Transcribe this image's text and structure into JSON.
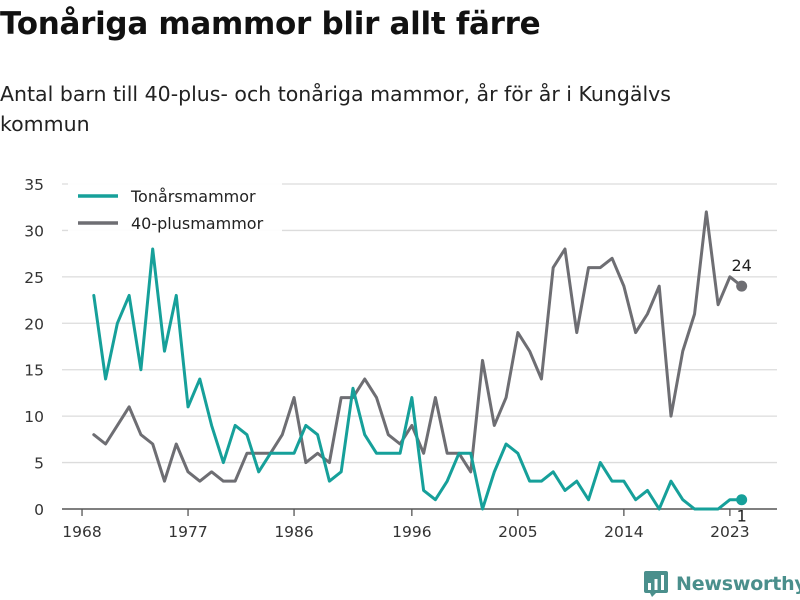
{
  "title": "Tonåriga mammor blir allt färre",
  "subtitle": "Antal barn till 40-plus- och tonåriga mammor, år för år i Kungälvs kommun",
  "brand": {
    "name": "Newsworthy",
    "icon": "newsworthy-logo-icon",
    "color": "#4a8f8c"
  },
  "chart_data": {
    "type": "line",
    "x": [
      1969,
      1970,
      1971,
      1972,
      1973,
      1974,
      1975,
      1976,
      1977,
      1978,
      1979,
      1980,
      1981,
      1982,
      1983,
      1984,
      1985,
      1986,
      1987,
      1988,
      1989,
      1990,
      1991,
      1992,
      1993,
      1994,
      1995,
      1996,
      1997,
      1998,
      1999,
      2000,
      2001,
      2002,
      2003,
      2004,
      2005,
      2006,
      2007,
      2008,
      2009,
      2010,
      2011,
      2012,
      2013,
      2014,
      2015,
      2016,
      2017,
      2018,
      2019,
      2020,
      2021,
      2022,
      2023,
      2024
    ],
    "series": [
      {
        "name": "Tonårsmammor",
        "color": "#16a09a",
        "values": [
          23,
          14,
          20,
          23,
          15,
          28,
          17,
          23,
          11,
          14,
          9,
          5,
          9,
          8,
          4,
          6,
          6,
          6,
          9,
          8,
          3,
          4,
          13,
          8,
          6,
          6,
          6,
          12,
          2,
          1,
          3,
          6,
          6,
          0,
          4,
          7,
          6,
          3,
          3,
          4,
          2,
          3,
          1,
          5,
          3,
          3,
          1,
          2,
          0,
          3,
          1,
          0,
          0,
          0,
          1,
          1
        ]
      },
      {
        "name": "40-plusmammor",
        "color": "#6e6e73",
        "values": [
          8,
          7,
          9,
          11,
          8,
          7,
          3,
          7,
          4,
          3,
          4,
          3,
          3,
          6,
          6,
          6,
          8,
          12,
          5,
          6,
          5,
          12,
          12,
          14,
          12,
          8,
          7,
          9,
          6,
          12,
          6,
          6,
          4,
          16,
          9,
          12,
          19,
          17,
          14,
          26,
          28,
          19,
          26,
          26,
          27,
          24,
          19,
          21,
          24,
          10,
          17,
          21,
          32,
          22,
          25,
          24
        ]
      }
    ],
    "end_labels": [
      {
        "series": "40-plusmammor",
        "text": "24"
      },
      {
        "series": "Tonårsmammor",
        "text": "1"
      }
    ],
    "x_ticks": [
      {
        "value": 1968,
        "label": "1968"
      },
      {
        "value": 1977,
        "label": "1977"
      },
      {
        "value": 1986,
        "label": "1986"
      },
      {
        "value": 1996,
        "label": "1996"
      },
      {
        "value": 2005,
        "label": "2005"
      },
      {
        "value": 2014,
        "label": "2014"
      },
      {
        "value": 2023,
        "label": "2023"
      }
    ],
    "y_ticks": [
      0,
      5,
      10,
      15,
      20,
      25,
      30,
      35
    ],
    "xlim": [
      1966.3,
      2027
    ],
    "ylim": [
      0,
      35
    ],
    "grid": "horizontal",
    "legend": "top-left",
    "colors": {
      "grid": "#dcdcdc",
      "axis": "#555555",
      "tick_label": "#333333"
    }
  }
}
